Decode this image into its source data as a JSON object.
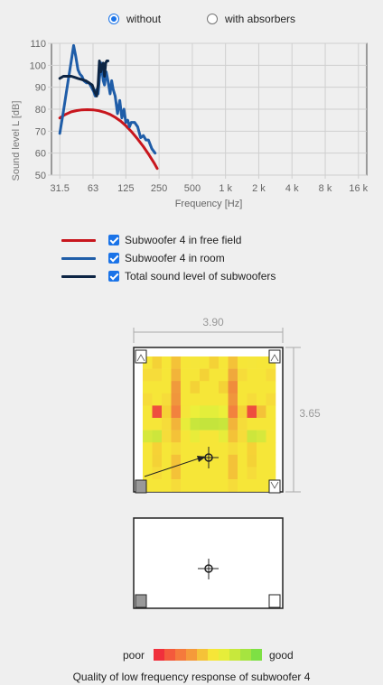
{
  "radios": [
    {
      "label": "without",
      "selected": true
    },
    {
      "label": "with absorbers",
      "selected": false
    }
  ],
  "chart_data": {
    "type": "line",
    "xlabel": "Frequency [Hz]",
    "ylabel": "Sound level  L  [dB]",
    "x_scale": "log",
    "x_ticks": [
      "31.5",
      "63",
      "125",
      "250",
      "500",
      "1 k",
      "2 k",
      "4 k",
      "8 k",
      "16 k"
    ],
    "x_tick_values": [
      31.5,
      63,
      125,
      250,
      500,
      1000,
      2000,
      4000,
      8000,
      16000
    ],
    "y_ticks": [
      "50",
      "60",
      "70",
      "80",
      "90",
      "100",
      "110"
    ],
    "ylim": [
      50,
      110
    ],
    "grid": true,
    "series": [
      {
        "name": "Subwoofer 4 in free field",
        "color": "#c8161d",
        "x": [
          31.5,
          35,
          40,
          45,
          50,
          56,
          63,
          71,
          80,
          90,
          100,
          112,
          125,
          140,
          160,
          180,
          200,
          225,
          240
        ],
        "y": [
          76,
          77.5,
          78.8,
          79.4,
          79.7,
          79.8,
          79.7,
          79.3,
          78.6,
          77.6,
          76.3,
          74.6,
          72.5,
          69.9,
          66.4,
          63,
          59.6,
          55.6,
          53
        ]
      },
      {
        "name": "Subwoofer 4 in room",
        "color": "#1f5da8",
        "x": [
          31.5,
          34,
          37,
          40,
          42,
          44,
          46,
          48,
          50,
          52,
          55,
          58,
          61,
          64,
          66,
          68,
          70,
          72,
          75,
          78,
          80,
          83,
          86,
          90,
          93,
          96,
          100,
          105,
          110,
          115,
          120,
          125,
          130,
          135,
          140,
          150,
          160,
          170,
          180,
          190,
          200,
          215,
          230
        ],
        "y": [
          69,
          79,
          91,
          102,
          109,
          104,
          98,
          96,
          95,
          93,
          92,
          92,
          90,
          88,
          86,
          89,
          87,
          94,
          101,
          93,
          91,
          97,
          93,
          87,
          93,
          89,
          86,
          78,
          84,
          76,
          80,
          74,
          75,
          72,
          74,
          74,
          72,
          67,
          68,
          66,
          66,
          62,
          60
        ]
      },
      {
        "name": "Total sound level of subwoofers",
        "color": "#0d2544",
        "x": [
          31.5,
          34,
          37,
          40,
          43,
          46,
          50,
          54,
          58,
          62,
          65,
          68,
          70,
          72,
          74,
          76,
          78,
          80,
          82,
          84,
          86
        ],
        "y": [
          94,
          95,
          95,
          95,
          94.5,
          94,
          93.5,
          93,
          92,
          91,
          88,
          86,
          91,
          102,
          97,
          100,
          101,
          95,
          101,
          102,
          102
        ]
      }
    ]
  },
  "legend": [
    {
      "label": "Subwoofer 4 in free field",
      "color": "#c8161d",
      "checked": true
    },
    {
      "label": "Subwoofer 4 in room",
      "color": "#1f5da8",
      "checked": true
    },
    {
      "label": "Total sound level of subwoofers",
      "color": "#0d2544",
      "checked": true
    }
  ],
  "room": {
    "width_label": "3.90",
    "depth_label": "3.65",
    "heatmap": [
      [
        "#f6e638",
        "#f4d236",
        "#f6e638",
        "#f4c238",
        "#f6e638",
        "#f5e63a",
        "#f6e638",
        "#f4d236",
        "#f6e638",
        "#f4c238",
        "#f6e638",
        "#f5e63a",
        "#f6e638",
        "#f6e638"
      ],
      [
        "#f6dc3a",
        "#f6dc3a",
        "#f6e638",
        "#f2b43a",
        "#f6e638",
        "#f6e638",
        "#f4d236",
        "#f6e638",
        "#f6e638",
        "#f0a83c",
        "#f6dc3a",
        "#f6e638",
        "#f6e638",
        "#f6dc3a"
      ],
      [
        "#f6e638",
        "#f6e638",
        "#f6e638",
        "#f09a3c",
        "#f6e638",
        "#f4d236",
        "#f6e638",
        "#f6e638",
        "#f4d236",
        "#f08c3c",
        "#f6e638",
        "#f6e638",
        "#f6e638",
        "#f6e638"
      ],
      [
        "#f6dc3a",
        "#f6e638",
        "#f6dc3a",
        "#f0963c",
        "#f6e638",
        "#f6e638",
        "#f6e638",
        "#f6e638",
        "#f6e638",
        "#f0963c",
        "#f6e638",
        "#f6dc3a",
        "#f6e638",
        "#f6dc3a"
      ],
      [
        "#f6e638",
        "#ee4e3e",
        "#f6d236",
        "#f2823e",
        "#f5e63a",
        "#ecef3a",
        "#e3ee3b",
        "#e3ee3b",
        "#ecef3a",
        "#f2823e",
        "#f6d236",
        "#ee4e3e",
        "#f4c238",
        "#f6e638"
      ],
      [
        "#f6e638",
        "#f6e638",
        "#f6dc3a",
        "#f2b43a",
        "#e8ec3a",
        "#c8e63c",
        "#c4e43c",
        "#c4e43c",
        "#c8e63c",
        "#f2b43a",
        "#f6dc3a",
        "#f6e638",
        "#f6e638",
        "#f6e638"
      ],
      [
        "#d6e83c",
        "#cde63c",
        "#f6dc3a",
        "#f4c238",
        "#f6e638",
        "#e8ec3a",
        "#f6e638",
        "#f6e638",
        "#e8ec3a",
        "#f4c238",
        "#f6dc3a",
        "#cde63c",
        "#d6e83c",
        "#f6e638"
      ],
      [
        "#f6e638",
        "#f6d236",
        "#f6e638",
        "#f6dc3a",
        "#f6e638",
        "#f6e638",
        "#f6e638",
        "#f6e638",
        "#f6e638",
        "#f6dc3a",
        "#f6e638",
        "#f6d236",
        "#f6e638",
        "#f6e638"
      ],
      [
        "#f6e638",
        "#f4d236",
        "#f6e638",
        "#f4c238",
        "#f6e638",
        "#f6e638",
        "#f6e638",
        "#f6e638",
        "#f6e638",
        "#f4c238",
        "#f6e638",
        "#f4d236",
        "#f6e638",
        "#f6e638"
      ],
      [
        "#f6e638",
        "#f6dc3a",
        "#f6e638",
        "#f4c238",
        "#f6e638",
        "#f6e638",
        "#f6e638",
        "#f6e638",
        "#f6e638",
        "#f4c238",
        "#f6e638",
        "#f6dc3a",
        "#f6e638",
        "#f6e638"
      ],
      [
        "#f6e638",
        "#f6e638",
        "#f6e638",
        "#f6dc3a",
        "#f6e638",
        "#f6e638",
        "#f6e638",
        "#f6e638",
        "#f6e638",
        "#f6dc3a",
        "#f6e638",
        "#f6e638",
        "#f6e638",
        "#f6e638"
      ]
    ]
  },
  "quality": {
    "poor_label": "poor",
    "good_label": "good",
    "scale": [
      "#f0303c",
      "#f45a3c",
      "#f57a3c",
      "#f59a3a",
      "#f5c238",
      "#f6e638",
      "#e6ee3a",
      "#c8e83c",
      "#a6e440",
      "#7ee044"
    ],
    "caption": "Quality of low frequency response of subwoofer 4"
  }
}
